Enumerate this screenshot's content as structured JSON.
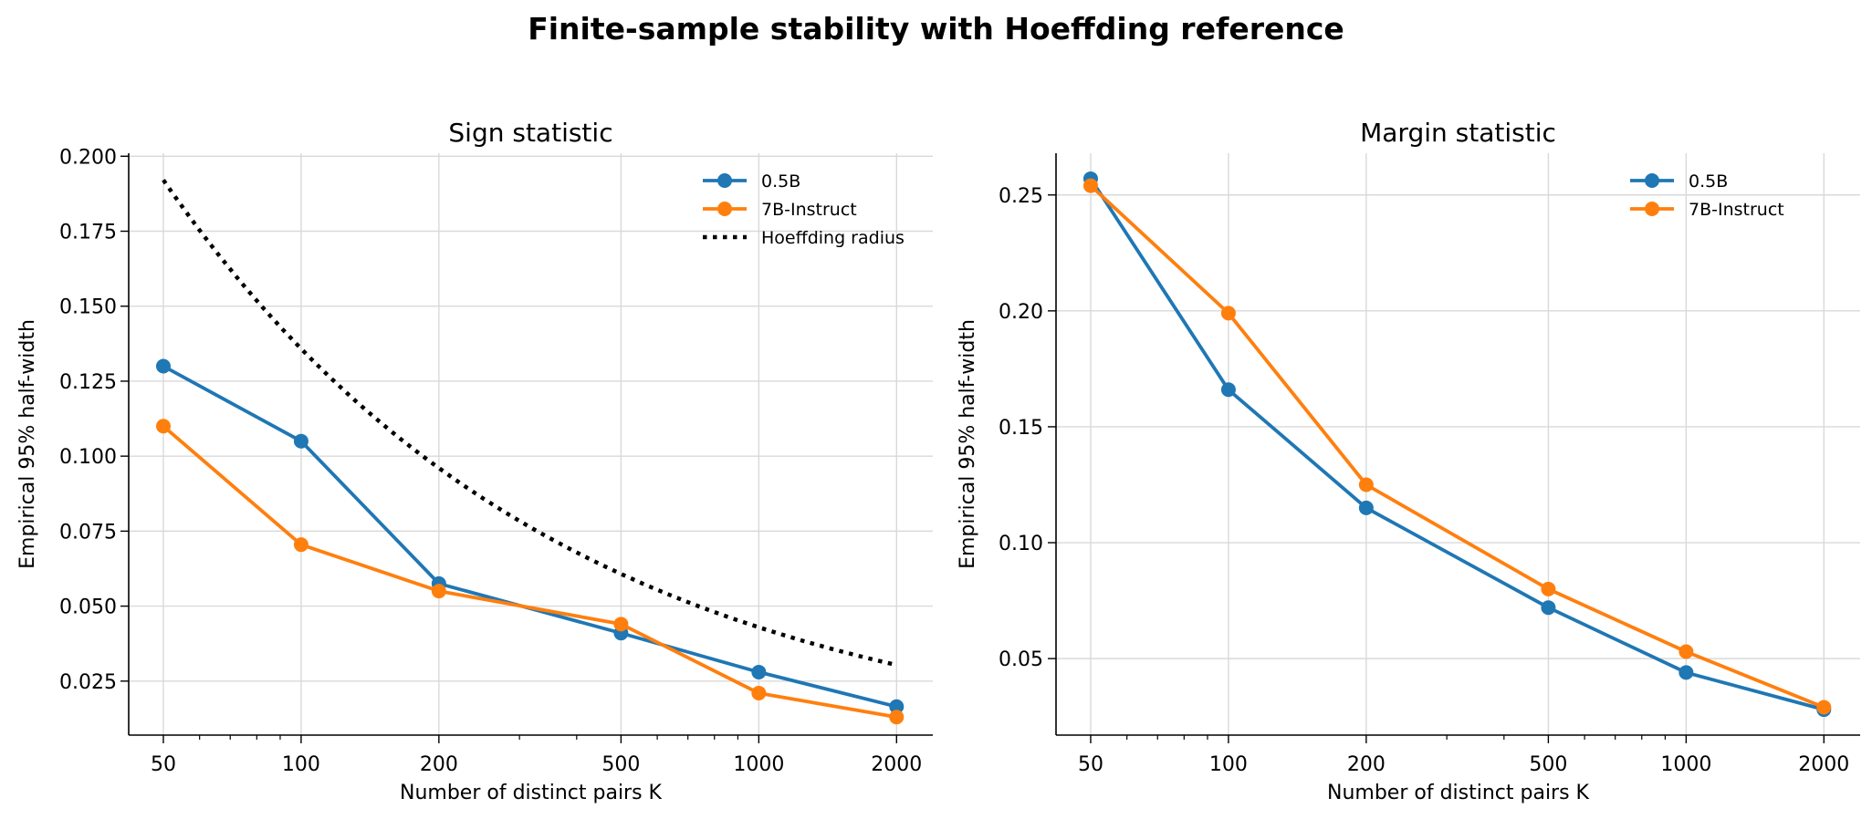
{
  "suptitle": "Finite-sample stability with Hoeffding reference",
  "colors": {
    "s05b": "#1f77b4",
    "s7b": "#ff7f0e",
    "hoeffding": "#000000",
    "grid": "#d9d9d9"
  },
  "chart_data": [
    {
      "type": "line",
      "title": "Sign statistic",
      "xlabel": "Number of distinct pairs K",
      "ylabel": "Empirical 95% half-width",
      "xscale": "log",
      "xlim": [
        42,
        2400
      ],
      "ylim": [
        0.007,
        0.201
      ],
      "xticks": [
        50,
        100,
        200,
        500,
        1000,
        2000
      ],
      "xtick_labels": [
        "50",
        "100",
        "200",
        "500",
        "1000",
        "2000"
      ],
      "yticks": [
        0.025,
        0.05,
        0.075,
        0.1,
        0.125,
        0.15,
        0.175,
        0.2
      ],
      "ytick_labels": [
        "0.025",
        "0.050",
        "0.075",
        "0.100",
        "0.125",
        "0.150",
        "0.175",
        "0.200"
      ],
      "grid": true,
      "legend": "top-right",
      "x": [
        50,
        100,
        200,
        500,
        1000,
        2000
      ],
      "series": [
        {
          "name": "0.5B",
          "color": "#1f77b4",
          "style": "solid-marker",
          "values": [
            0.13,
            0.105,
            0.0575,
            0.041,
            0.028,
            0.0165
          ]
        },
        {
          "name": "7B-Instruct",
          "color": "#ff7f0e",
          "style": "solid-marker",
          "values": [
            0.11,
            0.0705,
            0.055,
            0.044,
            0.021,
            0.013
          ]
        },
        {
          "name": "Hoeffding radius",
          "color": "#000000",
          "style": "dotted",
          "function": "sqrt(ln(40)/(2K))"
        }
      ]
    },
    {
      "type": "line",
      "title": "Margin statistic",
      "xlabel": "Number of distinct pairs K",
      "ylabel": "Empirical 95% half-width",
      "xscale": "log",
      "xlim": [
        42,
        2400
      ],
      "ylim": [
        0.017,
        0.268
      ],
      "xticks": [
        50,
        100,
        200,
        500,
        1000,
        2000
      ],
      "xtick_labels": [
        "50",
        "100",
        "200",
        "500",
        "1000",
        "2000"
      ],
      "yticks": [
        0.05,
        0.1,
        0.15,
        0.2,
        0.25
      ],
      "ytick_labels": [
        "0.05",
        "0.10",
        "0.15",
        "0.20",
        "0.25"
      ],
      "grid": true,
      "legend": "top-right",
      "x": [
        50,
        100,
        200,
        500,
        1000,
        2000
      ],
      "series": [
        {
          "name": "0.5B",
          "color": "#1f77b4",
          "style": "solid-marker",
          "values": [
            0.257,
            0.166,
            0.115,
            0.072,
            0.044,
            0.028
          ]
        },
        {
          "name": "7B-Instruct",
          "color": "#ff7f0e",
          "style": "solid-marker",
          "values": [
            0.254,
            0.199,
            0.125,
            0.08,
            0.053,
            0.029
          ]
        }
      ]
    }
  ]
}
